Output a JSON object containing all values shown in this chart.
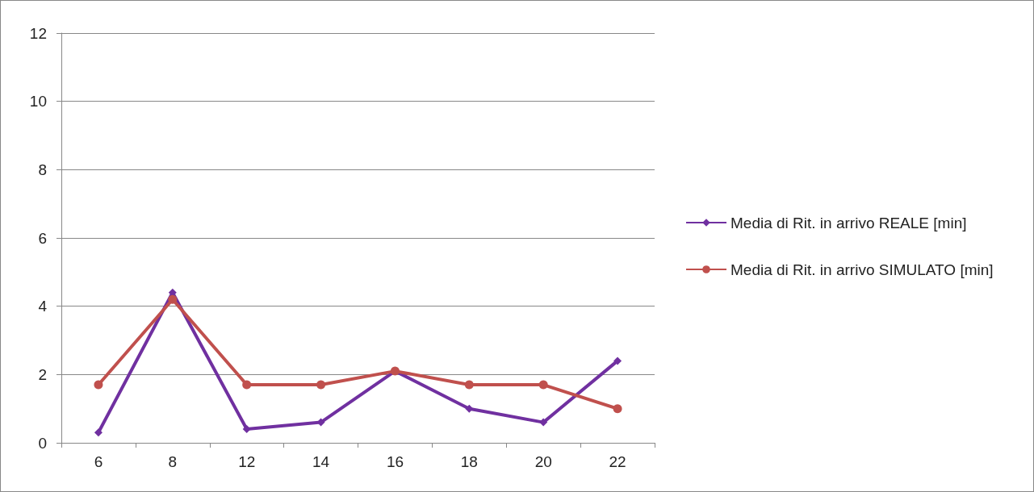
{
  "chart_data": {
    "type": "line",
    "categories": [
      "6",
      "8",
      "12",
      "14",
      "16",
      "18",
      "20",
      "22"
    ],
    "series": [
      {
        "name": "Media di Rit. in arrivo REALE [min]",
        "color": "#7030a0",
        "marker": "diamond",
        "values": [
          0.3,
          4.4,
          0.4,
          0.6,
          2.1,
          1.0,
          0.6,
          2.4
        ]
      },
      {
        "name": "Media di Rit. in arrivo SIMULATO [min]",
        "color": "#c0504d",
        "marker": "circle",
        "values": [
          1.7,
          4.2,
          1.7,
          1.7,
          2.1,
          1.7,
          1.7,
          1.0
        ]
      }
    ],
    "ylim": [
      0,
      12
    ],
    "yticks": [
      0,
      2,
      4,
      6,
      8,
      10,
      12
    ],
    "grid": "y",
    "legend": "right"
  }
}
